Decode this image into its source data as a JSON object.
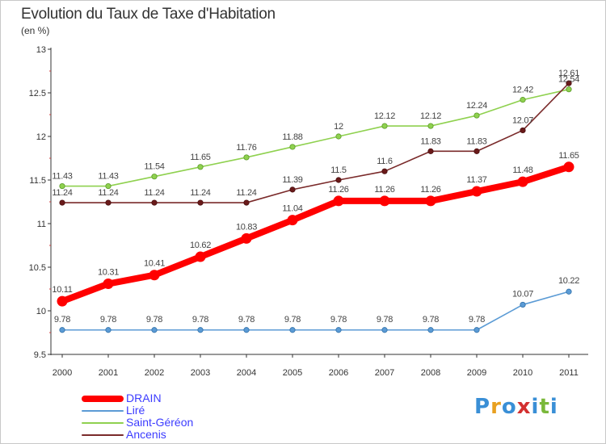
{
  "title": "Evolution du Taux de Taxe d'Habitation",
  "subtitle": "(en %)",
  "logo": {
    "text": "Proxiti",
    "letters": [
      "P",
      "r",
      "o",
      "x",
      "i",
      "t",
      "i"
    ],
    "colors": [
      "#3a8fd6",
      "#e8a020",
      "#3a8fd6",
      "#d33030",
      "#3a8fd6",
      "#7ab83a",
      "#3a8fd6"
    ]
  },
  "chart_data": {
    "type": "line",
    "title": "Evolution du Taux de Taxe d'Habitation",
    "ylabel": "(en %)",
    "xlabel": "",
    "x": [
      "2000",
      "2001",
      "2002",
      "2003",
      "2004",
      "2005",
      "2006",
      "2007",
      "2008",
      "2009",
      "2010",
      "2011"
    ],
    "ylim": [
      9.5,
      13
    ],
    "yticks": [
      "9.5",
      "10",
      "10.5",
      "11",
      "11.5",
      "12",
      "12.5",
      "13"
    ],
    "grid": false,
    "legend_position": "bottom-left",
    "series": [
      {
        "name": "DRAIN",
        "color": "#ff0000",
        "values": [
          10.11,
          10.31,
          10.41,
          10.62,
          10.83,
          11.04,
          11.26,
          11.26,
          11.26,
          11.37,
          11.48,
          11.65
        ],
        "labels": [
          "10.11",
          "10.31",
          "10.41",
          "10.62",
          "10.83",
          "11.04",
          "11.26",
          "11.26",
          "11.26",
          "11.37",
          "11.48",
          "11.65"
        ]
      },
      {
        "name": "Liré",
        "color": "#5b9bd5",
        "values": [
          9.78,
          9.78,
          9.78,
          9.78,
          9.78,
          9.78,
          9.78,
          9.78,
          9.78,
          9.78,
          10.07,
          10.22
        ],
        "labels": [
          "9.78",
          "9.78",
          "9.78",
          "9.78",
          "9.78",
          "9.78",
          "9.78",
          "9.78",
          "9.78",
          "9.78",
          "10.07",
          "10.22"
        ]
      },
      {
        "name": "Saint-Géréon",
        "color": "#8fd14f",
        "values": [
          11.43,
          11.43,
          11.54,
          11.65,
          11.76,
          11.88,
          12.0,
          12.12,
          12.12,
          12.24,
          12.42,
          12.54
        ],
        "labels": [
          "11.43",
          "11.43",
          "11.54",
          "11.65",
          "11.76",
          "11.88",
          "12",
          "12.12",
          "12.12",
          "12.24",
          "12.42",
          "12.54"
        ]
      },
      {
        "name": "Ancenis",
        "color": "#7a2a2a",
        "values": [
          11.24,
          11.24,
          11.24,
          11.24,
          11.24,
          11.39,
          11.5,
          11.6,
          11.83,
          11.83,
          12.07,
          12.61
        ],
        "labels": [
          "11.24",
          "11.24",
          "11.24",
          "11.24",
          "11.24",
          "11.39",
          "11.5",
          "11.6",
          "11.83",
          "11.83",
          "12.07",
          "12.61"
        ]
      }
    ]
  }
}
